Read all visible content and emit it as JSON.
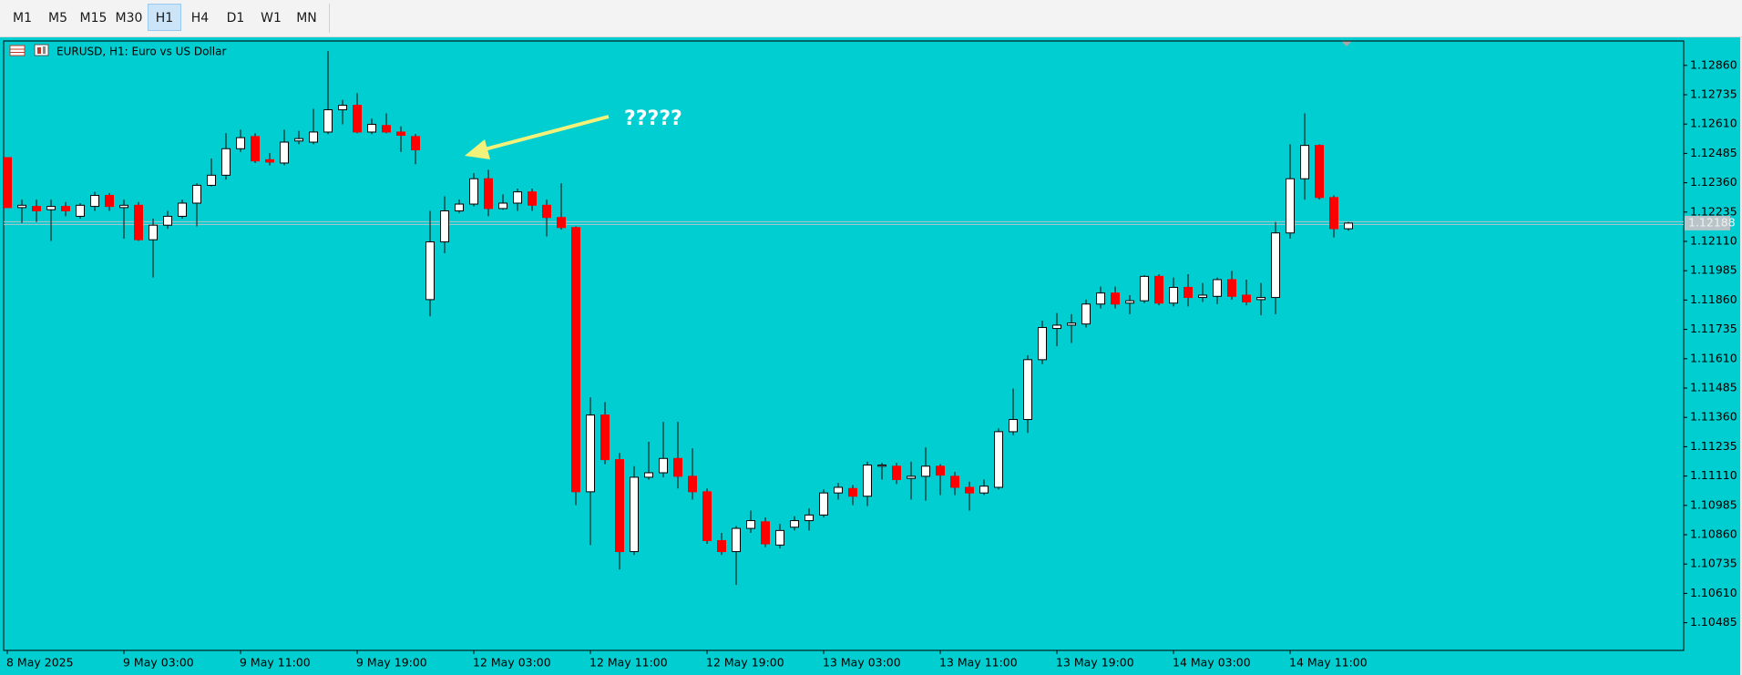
{
  "toolbar": {
    "buttons": [
      "M1",
      "M5",
      "M15",
      "M30",
      "H1",
      "H4",
      "D1",
      "W1",
      "MN"
    ],
    "selected": "H1"
  },
  "chart_data": {
    "type": "candlestick",
    "title": "EURUSD, H1:  Euro vs US Dollar",
    "annotation": "?????",
    "categories": [
      "8 May 2025",
      null,
      null,
      null,
      null,
      null,
      null,
      null,
      "9 May 03:00",
      null,
      null,
      null,
      null,
      null,
      null,
      null,
      "9 May 11:00",
      null,
      null,
      null,
      null,
      null,
      null,
      null,
      "9 May 19:00",
      null,
      null,
      null,
      null,
      null,
      null,
      null,
      "12 May 03:00",
      null,
      null,
      null,
      null,
      null,
      null,
      null,
      "12 May 11:00",
      null,
      null,
      null,
      null,
      null,
      null,
      null,
      "12 May 19:00",
      null,
      null,
      null,
      null,
      null,
      null,
      null,
      "13 May 03:00",
      null,
      null,
      null,
      null,
      null,
      null,
      null,
      "13 May 11:00",
      null,
      null,
      null,
      null,
      null,
      null,
      null,
      "13 May 19:00",
      null,
      null,
      null,
      null,
      null,
      null,
      null,
      "14 May 03:00",
      null,
      null,
      null,
      null,
      null,
      null,
      null,
      "14 May 11:00",
      null,
      null,
      null,
      null
    ],
    "open": [
      1.12467,
      1.12254,
      1.12259,
      1.12245,
      1.12259,
      1.12217,
      1.12259,
      1.12306,
      1.12254,
      1.12264,
      1.12117,
      1.12179,
      1.12217,
      1.12273,
      1.12349,
      1.12392,
      1.12505,
      1.12557,
      1.12458,
      1.12444,
      1.12538,
      1.12533,
      1.12576,
      1.12671,
      1.1269,
      1.12576,
      1.12604,
      1.12576,
      1.12557,
      1.11862,
      1.12108,
      1.1224,
      1.12269,
      1.12377,
      1.1225,
      1.12273,
      1.12321,
      1.12264,
      1.12212,
      1.12169,
      1.11043,
      1.1137,
      1.1118,
      1.10788,
      1.11105,
      1.11124,
      1.11185,
      1.11109,
      1.11043,
      1.10835,
      1.10788,
      1.10887,
      1.10915,
      1.10816,
      1.10892,
      1.1092,
      1.10944,
      1.11038,
      1.11057,
      1.11024,
      1.11152,
      1.11152,
      1.111,
      1.11109,
      1.11152,
      1.11109,
      1.11062,
      1.11038,
      1.11062,
      1.11299,
      1.11351,
      1.11606,
      1.11739,
      1.11753,
      1.11758,
      1.11843,
      1.1189,
      1.11847,
      1.11857,
      1.11961,
      1.11847,
      1.11914,
      1.11871,
      1.11876,
      1.11947,
      1.11881,
      1.11862,
      1.11871,
      1.12146,
      1.12377,
      1.12519,
      1.12297,
      1.12164
    ],
    "high": [
      1.12467,
      1.12288,
      1.12288,
      1.12288,
      1.12278,
      1.12273,
      1.12321,
      1.12316,
      1.12288,
      1.12278,
      1.12207,
      1.1224,
      1.12288,
      1.12358,
      1.12463,
      1.12571,
      1.12586,
      1.12571,
      1.12486,
      1.12586,
      1.12581,
      1.12675,
      1.12921,
      1.12713,
      1.12742,
      1.12633,
      1.12656,
      1.126,
      1.12567,
      1.1224,
      1.12302,
      1.12288,
      1.12401,
      1.12415,
      1.12311,
      1.12335,
      1.12335,
      1.12288,
      1.12358,
      1.12174,
      1.11445,
      1.11426,
      1.11209,
      1.11152,
      1.11256,
      1.11341,
      1.11341,
      1.11228,
      1.11057,
      1.10868,
      1.10897,
      1.10963,
      1.10934,
      1.10906,
      1.10939,
      1.10972,
      1.11053,
      1.11081,
      1.11072,
      1.11171,
      1.11166,
      1.11166,
      1.11171,
      1.11232,
      1.11161,
      1.11128,
      1.11086,
      1.11095,
      1.11313,
      1.11483,
      1.11625,
      1.11772,
      1.11805,
      1.118,
      1.11862,
      1.11918,
      1.11918,
      1.11881,
      1.11966,
      1.1197,
      1.11956,
      1.1197,
      1.11933,
      1.11956,
      1.11985,
      1.11947,
      1.11933,
      1.12193,
      1.12524,
      1.12656,
      1.12524,
      1.12306,
      1.12193
    ],
    "low": [
      1.12254,
      1.12188,
      1.12193,
      1.12112,
      1.12217,
      1.12207,
      1.1224,
      1.1224,
      1.12122,
      1.12112,
      1.11956,
      1.12164,
      1.12207,
      1.12174,
      1.12344,
      1.12373,
      1.12491,
      1.12444,
      1.12434,
      1.12434,
      1.12524,
      1.12524,
      1.12567,
      1.12609,
      1.12571,
      1.12567,
      1.12571,
      1.12491,
      1.12439,
      1.11791,
      1.1206,
      1.12231,
      1.12259,
      1.12217,
      1.12245,
      1.1224,
      1.1224,
      1.12131,
      1.1216,
      1.10986,
      1.10816,
      1.11161,
      1.10712,
      1.10774,
      1.11095,
      1.11105,
      1.11057,
      1.1101,
      1.10821,
      1.10774,
      1.10646,
      1.10868,
      1.10807,
      1.10802,
      1.10878,
      1.10878,
      1.10934,
      1.1101,
      1.10986,
      1.10982,
      1.11095,
      1.11076,
      1.1101,
      1.11005,
      1.11029,
      1.11029,
      1.10963,
      1.11029,
      1.11053,
      1.11284,
      1.11294,
      1.11587,
      1.11663,
      1.11677,
      1.11743,
      1.11824,
      1.11824,
      1.118,
      1.11847,
      1.11838,
      1.11833,
      1.11833,
      1.11852,
      1.11843,
      1.11862,
      1.11838,
      1.11795,
      1.118,
      1.12122,
      1.12288,
      1.12288,
      1.12127,
      1.12155
    ],
    "close": [
      1.12254,
      1.12264,
      1.1224,
      1.12259,
      1.1224,
      1.12264,
      1.12306,
      1.12259,
      1.12264,
      1.12117,
      1.12179,
      1.12217,
      1.12273,
      1.12349,
      1.12392,
      1.12505,
      1.12552,
      1.12453,
      1.12448,
      1.12533,
      1.12548,
      1.12576,
      1.12671,
      1.1269,
      1.12576,
      1.12609,
      1.12576,
      1.12562,
      1.125,
      1.12108,
      1.1224,
      1.12269,
      1.12377,
      1.1225,
      1.12273,
      1.12321,
      1.12264,
      1.12212,
      1.12169,
      1.11043,
      1.1137,
      1.1118,
      1.10788,
      1.11105,
      1.11124,
      1.11185,
      1.11109,
      1.11043,
      1.10835,
      1.10788,
      1.10887,
      1.1092,
      1.10821,
      1.10878,
      1.1092,
      1.10944,
      1.11038,
      1.11062,
      1.11024,
      1.11157,
      1.11157,
      1.11095,
      1.11109,
      1.11152,
      1.11114,
      1.11062,
      1.11038,
      1.11067,
      1.11299,
      1.11351,
      1.11606,
      1.11743,
      1.11753,
      1.11762,
      1.11843,
      1.1189,
      1.11843,
      1.11857,
      1.11961,
      1.11847,
      1.11914,
      1.11871,
      1.11881,
      1.11947,
      1.11876,
      1.11852,
      1.11871,
      1.12146,
      1.12377,
      1.12519,
      1.12297,
      1.12164,
      1.12188
    ],
    "up_color": "#ffffff",
    "down_color": "#ff0000",
    "background": "#00ced1",
    "current_price": 1.12188,
    "ylim": [
      1.10367,
      1.12964
    ],
    "yticks": [
      {
        "value": 1.1286,
        "label": "1.12860"
      },
      1.12735,
      {
        "value": 1.1261,
        "label": "1.12610"
      },
      1.12485,
      {
        "value": 1.1236,
        "label": "1.12360"
      },
      1.12235,
      {
        "value": 1.1211,
        "label": "1.12110"
      },
      1.11985,
      {
        "value": 1.1186,
        "label": "1.11860"
      },
      1.11735,
      {
        "value": 1.1161,
        "label": "1.11610"
      },
      1.11485,
      {
        "value": 1.1136,
        "label": "1.11360"
      },
      1.11235,
      {
        "value": 1.1111,
        "label": "1.11110"
      },
      1.10985,
      {
        "value": 1.1086,
        "label": "1.10860"
      },
      1.10735,
      {
        "value": 1.1061,
        "label": "1.10610"
      },
      1.10485
    ]
  }
}
